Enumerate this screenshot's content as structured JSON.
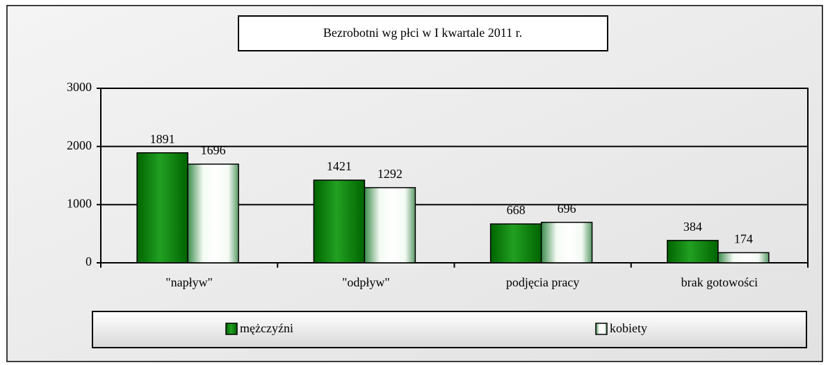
{
  "chart_data": {
    "type": "bar",
    "title": "Bezrobotni  wg  płci  w I  kwartale 2011 r.",
    "categories": [
      "\"napływ\"",
      "\"odpływ\"",
      "podjęcia pracy",
      "brak gotowości"
    ],
    "series": [
      {
        "name": "mężczyźni",
        "color": "#006400",
        "values": [
          1891,
          1421,
          668,
          384
        ]
      },
      {
        "name": "kobiety",
        "color": "#f4faf4",
        "values": [
          1696,
          1292,
          696,
          174
        ]
      }
    ],
    "ylim": [
      0,
      3000
    ],
    "yticks": [
      0,
      1000,
      2000,
      3000
    ],
    "grid": true,
    "legend": "bottom"
  }
}
